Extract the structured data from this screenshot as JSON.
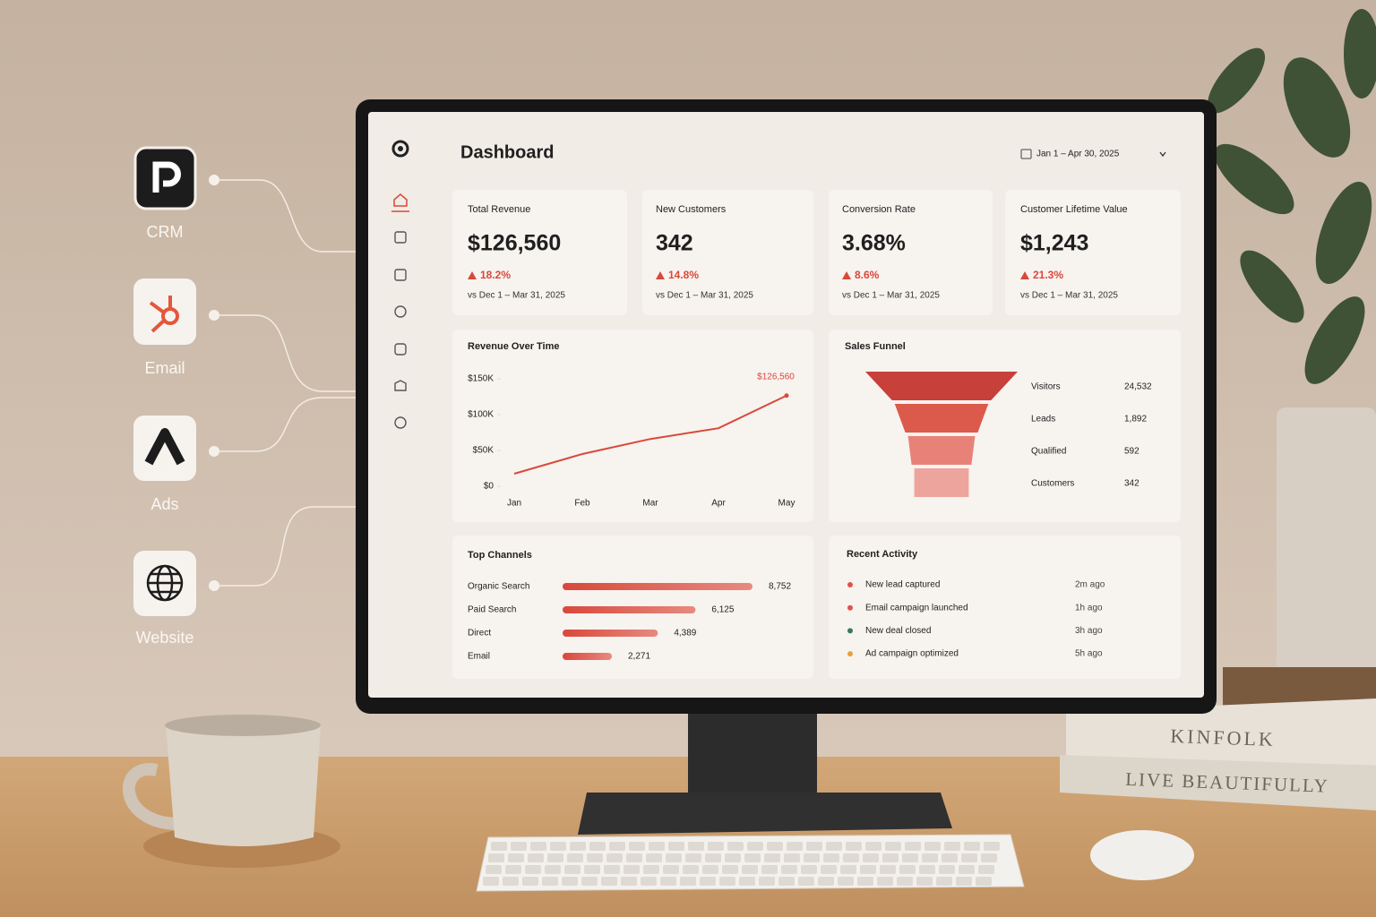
{
  "integrations": [
    "CRM",
    "Email",
    "Ads",
    "Website"
  ],
  "header": {
    "title": "Dashboard",
    "date_range": "Jan 1 – Apr 30, 2025"
  },
  "kpis": [
    {
      "label": "Total Revenue",
      "value": "$126,560",
      "change": "18.2%",
      "comparison": "vs Dec 1 – Mar 31, 2025"
    },
    {
      "label": "New Customers",
      "value": "342",
      "change": "14.8%",
      "comparison": "vs Dec 1 – Mar 31, 2025"
    },
    {
      "label": "Conversion Rate",
      "value": "3.68%",
      "change": "8.6%",
      "comparison": "vs Dec 1 – Mar 31, 2025"
    },
    {
      "label": "Customer Lifetime Value",
      "value": "$1,243",
      "change": "21.3%",
      "comparison": "vs Dec 1 – Mar 31, 2025"
    }
  ],
  "chart_data": [
    {
      "type": "line",
      "title": "Revenue Over Time",
      "categories": [
        "Jan",
        "Feb",
        "Mar",
        "Apr",
        "May"
      ],
      "values": [
        17500,
        45000,
        66000,
        81000,
        126560
      ],
      "value_labels": [
        null,
        null,
        null,
        null,
        "$126,560"
      ],
      "color": "#d9483b",
      "ylim": [
        0,
        150000
      ],
      "grid": false,
      "yticks": [
        {
          "value": 0,
          "label": "$0"
        },
        {
          "value": 50000,
          "label": "$50K"
        },
        {
          "value": 100000,
          "label": "$100K"
        },
        {
          "value": 150000,
          "label": "$150K"
        }
      ]
    },
    {
      "type": "funnel",
      "title": "Sales Funnel",
      "categories": [
        "Visitors",
        "Leads",
        "Qualified",
        "Customers"
      ],
      "values": [
        24532,
        1892,
        592,
        342
      ],
      "value_labels": [
        "24,532",
        "1,892",
        "592",
        "342"
      ],
      "colors": [
        "#c8403a",
        "#dc5a4b",
        "#e88278",
        "#eda49c"
      ]
    },
    {
      "type": "bar",
      "orientation": "horizontal",
      "title": "Top Channels",
      "categories": [
        "Organic Search",
        "Paid Search",
        "Direct",
        "Email"
      ],
      "values": [
        8752,
        6125,
        4389,
        2271
      ],
      "value_labels": [
        "8,752",
        "6,125",
        "4,389",
        "2,271"
      ],
      "color": "#dc5448"
    }
  ],
  "activity": {
    "title": "Recent Activity",
    "items": [
      {
        "text": "New lead captured",
        "time": "2m ago",
        "color": "#e0524a"
      },
      {
        "text": "Email campaign launched",
        "time": "1h ago",
        "color": "#e0524a"
      },
      {
        "text": "New deal closed",
        "time": "3h ago",
        "color": "#3a7a5a"
      },
      {
        "text": "Ad campaign optimized",
        "time": "5h ago",
        "color": "#e6a23c"
      }
    ]
  },
  "scene": {
    "books": [
      "KINFOLK",
      "LIVE BEAUTIFULLY"
    ]
  }
}
